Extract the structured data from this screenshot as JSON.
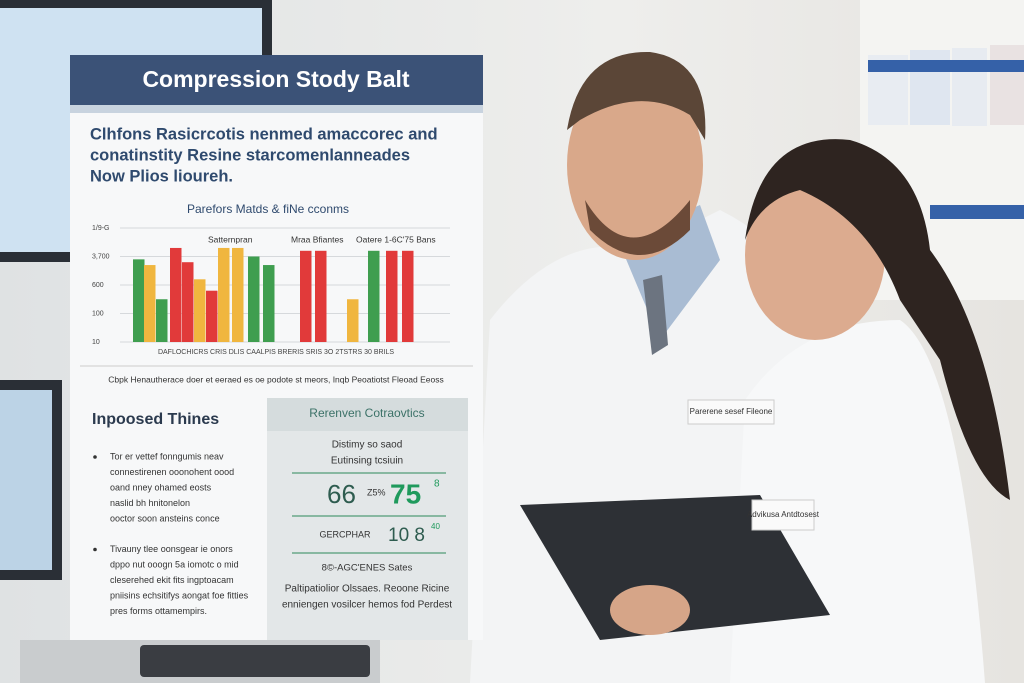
{
  "panel": {
    "title": "Compression Stody Balt",
    "intro": [
      "Clhfons Rasicrcotis nenmed amaccorec and",
      "conatinstity Resine starcomenlanneades",
      "Now Plios lioureh."
    ],
    "caption": "Cbpk Henautherace doer et eeraed es oe podote st meors,  Inqb  Peoatiotst Fleoad  Eeoss",
    "left": {
      "title": "Inpoosed Thines",
      "bullets": [
        [
          "Tor er vettef fonngumis neav",
          "connestirenen ooonohent oood",
          "oand nney ohamed eosts",
          "naslid bh hnitonelon",
          "ooctor soon ansteins conce"
        ],
        [
          "Tivauny tlee oonsgear ie onors",
          "dppo nut ooogn 5a iomotc o mid",
          "cleserehed ekit fits ingptoacam",
          "pniisins echsitifys aongat foe fitties",
          "pres forms ottamempirs."
        ]
      ]
    },
    "right": {
      "title": "Rerenven Cotraovtics",
      "lines": [
        "Distimy so saod",
        "Eutinsing tcsiuin"
      ],
      "stat1": "66",
      "stat1_unit": "Z5%",
      "stat1_big": "75",
      "stat1_sup": "8",
      "stat2_label": "GERCPHAR",
      "stat2": "10 8",
      "stat2_sup": "40",
      "sub": "8©-AGC'ENES Sates",
      "foot": [
        "Paltipatiolior Olssaes. Reoone Ricine",
        "enniengen vosilcer hemos fod Perdest"
      ]
    }
  },
  "badges": [
    "Parerene sesef Fileone",
    "Advikusa Antdtosest"
  ],
  "chart_data": {
    "type": "bar",
    "title": "Parefors Matds & fiNe cconms",
    "legend_labels": [
      "Satternpran",
      "Mraa Bfiantes",
      "Oatere 1-6C'75 Bans"
    ],
    "x_label": "DAFLOCHICRS CRIS DLIS CAALPIS BRERIS SRIS 3O 2TSTRS 30 BRILS",
    "categories": [
      null,
      null,
      null,
      null,
      null,
      null,
      null,
      null,
      null,
      null,
      null,
      null,
      null,
      null,
      null,
      null,
      null
    ],
    "values": [
      2.9,
      2.7,
      1.5,
      3.3,
      2.8,
      2.2,
      1.8,
      3.3,
      3.3,
      3.0,
      2.7,
      3.2,
      3.2,
      1.5,
      3.2,
      3.2,
      3.2
    ],
    "colors": [
      "#3f9e4f",
      "#f0b63f",
      "#3f9e4f",
      "#e13a3a",
      "#e13a3a",
      "#f0b63f",
      "#e13a3a",
      "#f0b63f",
      "#f0b63f",
      "#3f9e4f",
      "#3f9e4f",
      "#e13a3a",
      "#e13a3a",
      "#f0b63f",
      "#3f9e4f",
      "#e13a3a",
      "#e13a3a"
    ],
    "ylim": [
      0,
      4
    ],
    "yticks": [
      {
        "value": 0,
        "label": "10"
      },
      {
        "value": 1,
        "label": "100"
      },
      {
        "value": 2,
        "label": "600"
      },
      {
        "value": 3,
        "label": "3,700"
      },
      {
        "value": 4,
        "label": "1/9-G"
      }
    ],
    "grid": true
  }
}
